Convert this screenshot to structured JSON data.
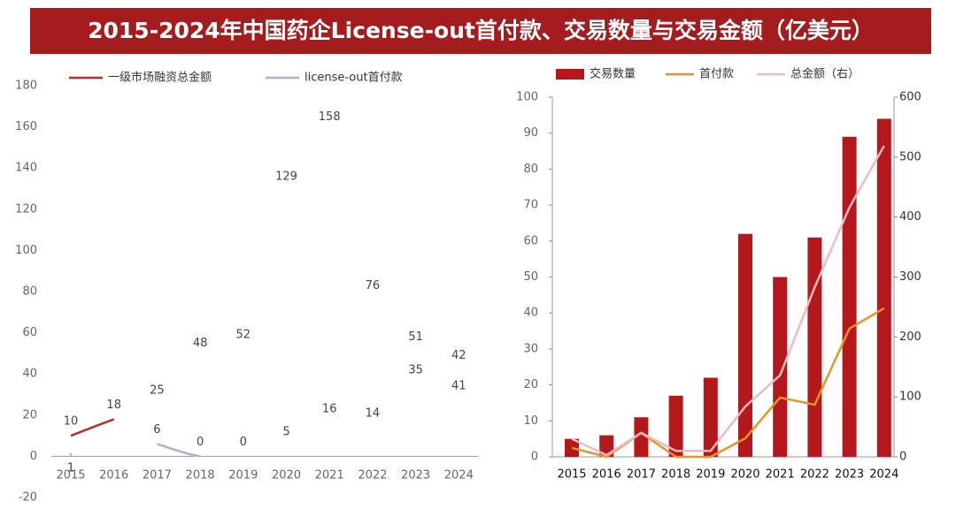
{
  "title": "2015-2024年中国药企License-out首付款、交易数量与交易金额（亿美元）",
  "chart_data": [
    {
      "type": "line",
      "categories": [
        "2015",
        "2016",
        "2017",
        "2018",
        "2019",
        "2020",
        "2021",
        "2022",
        "2023",
        "2024"
      ],
      "series": [
        {
          "name": "一级市场融资总金额",
          "color": "#c0282a",
          "values": [
            10,
            18,
            25,
            48,
            52,
            129,
            158,
            76,
            51,
            42
          ]
        },
        {
          "name": "license-out首付款",
          "color": "#bba9d8",
          "values": [
            1,
            null,
            6,
            0,
            0,
            5,
            16,
            14,
            35,
            41
          ]
        }
      ],
      "ylim": [
        -20,
        180
      ],
      "yticks": [
        -20,
        0,
        20,
        40,
        60,
        80,
        100,
        120,
        140,
        160,
        180
      ],
      "data_labels": true,
      "smooth": true
    },
    {
      "type": "bar",
      "categories": [
        "2015",
        "2016",
        "2017",
        "2018",
        "2019",
        "2020",
        "2021",
        "2022",
        "2023",
        "2024"
      ],
      "series": [
        {
          "name": "交易数量",
          "color": "#b5181b",
          "values": [
            5,
            6,
            11,
            17,
            22,
            62,
            50,
            61,
            89,
            94
          ]
        },
        {
          "name": "首付款",
          "color": "#e8922c",
          "type": "line",
          "axis": "y2",
          "values": [
            15,
            0,
            40,
            0,
            0,
            31,
            99,
            87,
            214,
            248
          ]
        },
        {
          "name": "总金额（右）",
          "color": "#f3b9c3",
          "type": "line",
          "axis": "y2",
          "values": [
            30,
            3,
            40,
            10,
            10,
            84,
            136,
            283,
            416,
            519
          ]
        }
      ],
      "ylim": [
        0,
        100
      ],
      "yticks": [
        0,
        10,
        20,
        30,
        40,
        50,
        60,
        70,
        80,
        90,
        100
      ],
      "y2lim": [
        0,
        600
      ],
      "y2ticks": [
        0,
        100,
        200,
        300,
        400,
        500,
        600
      ]
    }
  ]
}
